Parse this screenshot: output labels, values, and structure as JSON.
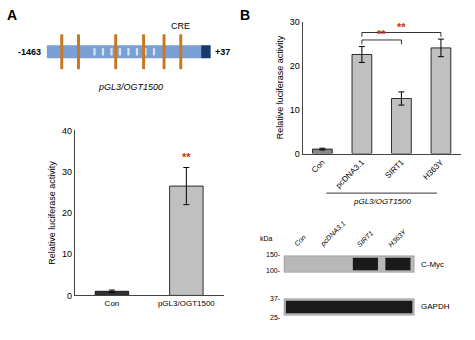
{
  "chart_data": [
    {
      "type": "bar",
      "title": "A",
      "categories": [
        "Con",
        "pGL3/OGT1500"
      ],
      "values": [
        1.0,
        26.5
      ],
      "errors": [
        0.3,
        4.5
      ],
      "colors": [
        "#333333",
        "#c0c0c0"
      ],
      "ylabel": "Relative luciferase activity",
      "ylim": [
        0,
        40
      ],
      "yticks": [
        0,
        10,
        20,
        30,
        40
      ],
      "grid": false,
      "annotations": [
        {
          "text": "**",
          "color": "#cc3300",
          "categories": [
            "pGL3/OGT1500"
          ]
        },
        {
          "text": "-1463"
        },
        {
          "text": "+37"
        },
        {
          "text": "CRE"
        },
        {
          "text": "pGL3/OGT1500"
        }
      ]
    },
    {
      "type": "bar",
      "title": "B",
      "categories": [
        "Con",
        "pcDNA3.1",
        "SIRT1",
        "H363Y"
      ],
      "values": [
        1.0,
        22.5,
        12.5,
        24.0
      ],
      "errors": [
        0.2,
        1.8,
        1.5,
        2.0
      ],
      "colors": [
        "#888888",
        "#c0c0c0",
        "#c0c0c0",
        "#c0c0c0"
      ],
      "ylabel": "Relative luciferase activity",
      "ylim": [
        0,
        30
      ],
      "yticks": [
        0,
        10,
        20,
        30
      ],
      "grid": false,
      "annotations": [
        {
          "text": "**",
          "color": "#cc3300",
          "categories": [
            "pcDNA3.1",
            "SIRT1"
          ]
        },
        {
          "text": "**",
          "color": "#cc3300",
          "categories": [
            "pcDNA3.1",
            "H363Y"
          ]
        },
        {
          "text": "pGL3/OGT1500"
        },
        {
          "text": "kDa"
        },
        {
          "text": "150-"
        },
        {
          "text": "100-"
        },
        {
          "text": "C-Myc"
        },
        {
          "text": "37-"
        },
        {
          "text": "25-"
        },
        {
          "text": "GAPDH"
        }
      ]
    }
  ]
}
